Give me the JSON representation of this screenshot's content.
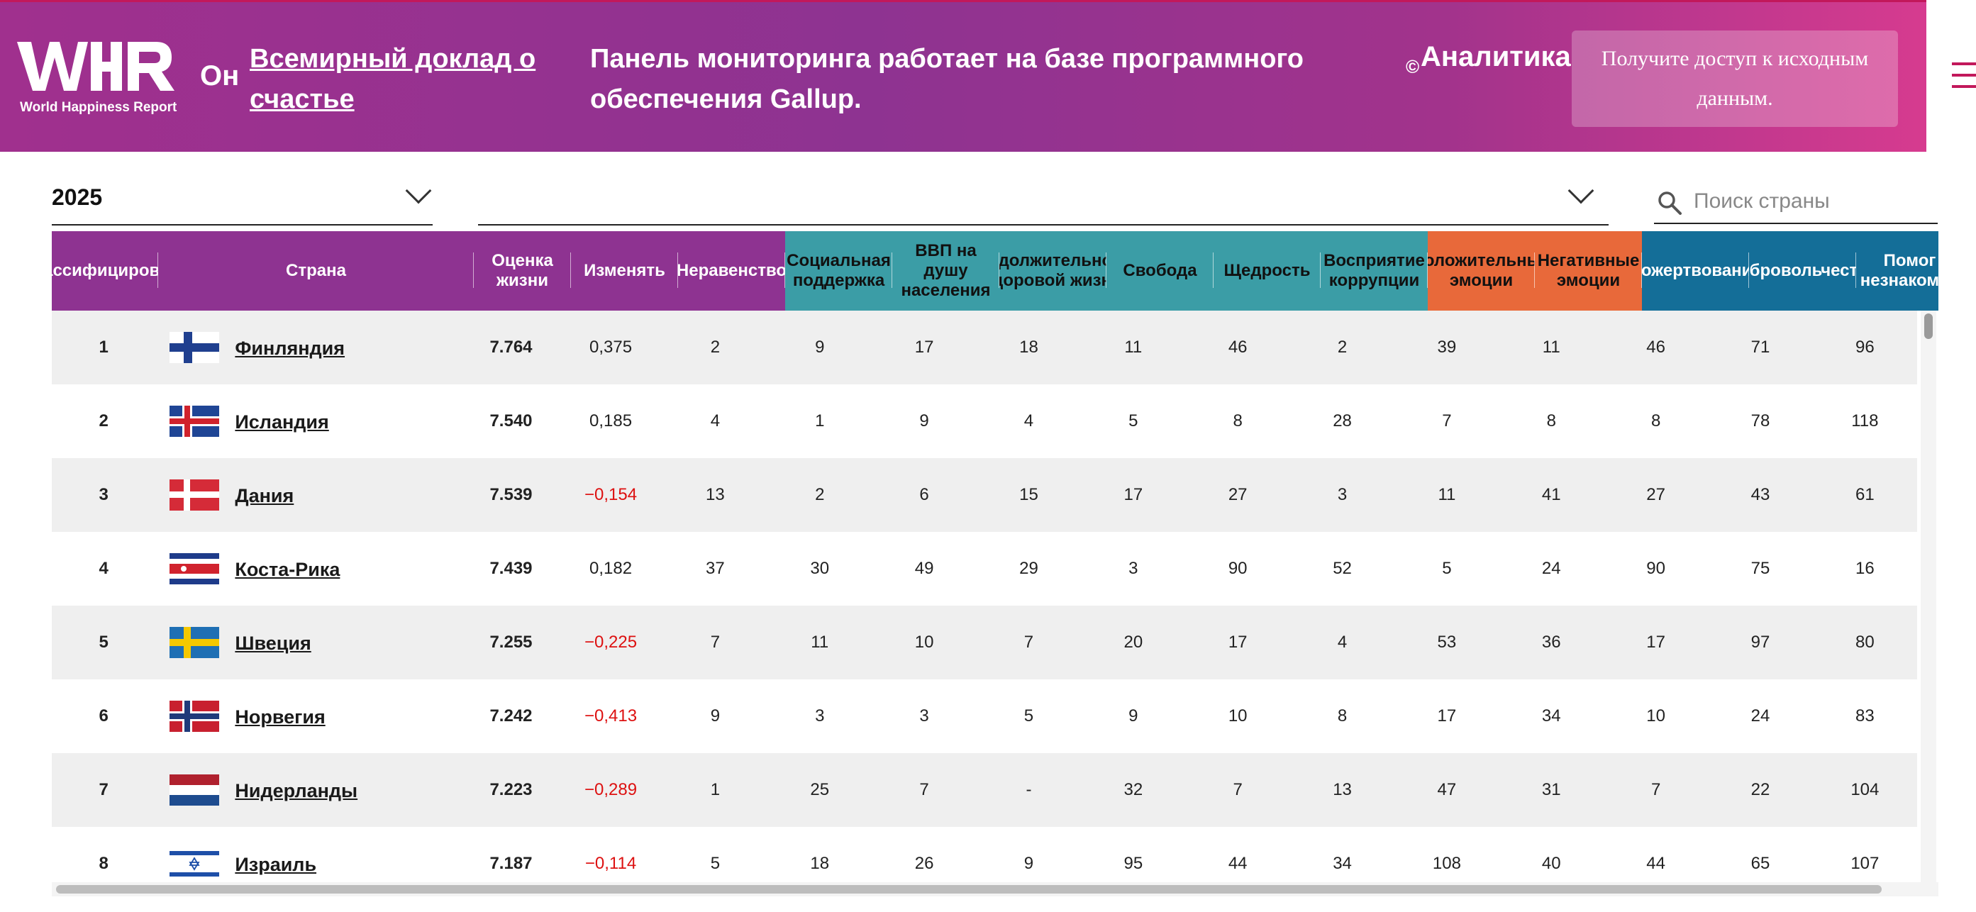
{
  "header": {
    "logo_text": "World Happiness Report",
    "on_label": "Он",
    "report_link": "Всемирный доклад о счастье",
    "message": "Панель мониторинга работает на базе программного обеспечения Gallup.",
    "copyright_symbol": "©",
    "analytics_label": "Аналитика",
    "access_button": "Получите доступ к исходным данным.",
    "menu_icon": "hamburger-icon"
  },
  "filters": {
    "year_value": "2025",
    "region_value": "",
    "search_placeholder": "Поиск страны",
    "search_value": ""
  },
  "colors": {
    "header_gradient_start": "#a0308e",
    "header_gradient_end": "#d63b8f",
    "group_purple": "#8e3391",
    "group_teal": "#3b9da6",
    "group_orange": "#e8693a",
    "group_blue": "#146e98",
    "negative_change": "#dd1111"
  },
  "table": {
    "columns": [
      {
        "label": "Классифицировать",
        "group": "purple"
      },
      {
        "label": "Страна",
        "group": "purple"
      },
      {
        "label": "Оценка жизни",
        "group": "purple"
      },
      {
        "label": "Изменять",
        "group": "purple"
      },
      {
        "label": "Неравенство",
        "group": "purple"
      },
      {
        "label": "Социальная поддержка",
        "group": "teal"
      },
      {
        "label": "ВВП на душу населения",
        "group": "teal"
      },
      {
        "label": "Продолжительность здоровой жизни",
        "group": "teal"
      },
      {
        "label": "Свобода",
        "group": "teal"
      },
      {
        "label": "Щедрость",
        "group": "teal"
      },
      {
        "label": "Восприятие коррупции",
        "group": "teal"
      },
      {
        "label": "Положительные эмоции",
        "group": "orange"
      },
      {
        "label": "Негативные эмоции",
        "group": "orange"
      },
      {
        "label": "Пожертвования",
        "group": "blue"
      },
      {
        "label": "Добровольчество",
        "group": "blue"
      },
      {
        "label": "Помог незнакомцу",
        "group": "blue"
      }
    ],
    "rows": [
      {
        "rank": "1",
        "country": "Финляндия",
        "flag": "finland-flag-icon",
        "score": "7.764",
        "change": "0,375",
        "change_negative": false,
        "cells": [
          "2",
          "9",
          "17",
          "18",
          "11",
          "46",
          "2",
          "39",
          "11",
          "46",
          "71",
          "96"
        ]
      },
      {
        "rank": "2",
        "country": "Исландия",
        "flag": "iceland-flag-icon",
        "score": "7.540",
        "change": "0,185",
        "change_negative": false,
        "cells": [
          "4",
          "1",
          "9",
          "4",
          "5",
          "8",
          "28",
          "7",
          "8",
          "8",
          "78",
          "118"
        ]
      },
      {
        "rank": "3",
        "country": "Дания",
        "flag": "denmark-flag-icon",
        "score": "7.539",
        "change": "−0,154",
        "change_negative": true,
        "cells": [
          "13",
          "2",
          "6",
          "15",
          "17",
          "27",
          "3",
          "11",
          "41",
          "27",
          "43",
          "61"
        ]
      },
      {
        "rank": "4",
        "country": "Коста-Рика",
        "flag": "costa-rica-flag-icon",
        "score": "7.439",
        "change": "0,182",
        "change_negative": false,
        "cells": [
          "37",
          "30",
          "49",
          "29",
          "3",
          "90",
          "52",
          "5",
          "24",
          "90",
          "75",
          "16"
        ]
      },
      {
        "rank": "5",
        "country": "Швеция",
        "flag": "sweden-flag-icon",
        "score": "7.255",
        "change": "−0,225",
        "change_negative": true,
        "cells": [
          "7",
          "11",
          "10",
          "7",
          "20",
          "17",
          "4",
          "53",
          "36",
          "17",
          "97",
          "80"
        ]
      },
      {
        "rank": "6",
        "country": "Норвегия",
        "flag": "norway-flag-icon",
        "score": "7.242",
        "change": "−0,413",
        "change_negative": true,
        "cells": [
          "9",
          "3",
          "3",
          "5",
          "9",
          "10",
          "8",
          "17",
          "34",
          "10",
          "24",
          "83"
        ]
      },
      {
        "rank": "7",
        "country": "Нидерланды",
        "flag": "netherlands-flag-icon",
        "score": "7.223",
        "change": "−0,289",
        "change_negative": true,
        "cells": [
          "1",
          "25",
          "7",
          "-",
          "32",
          "7",
          "13",
          "47",
          "31",
          "7",
          "22",
          "104"
        ]
      },
      {
        "rank": "8",
        "country": "Израиль",
        "flag": "israel-flag-icon",
        "score": "7.187",
        "change": "−0,114",
        "change_negative": true,
        "cells": [
          "5",
          "18",
          "26",
          "9",
          "95",
          "44",
          "34",
          "108",
          "40",
          "44",
          "65",
          "107"
        ]
      }
    ]
  }
}
